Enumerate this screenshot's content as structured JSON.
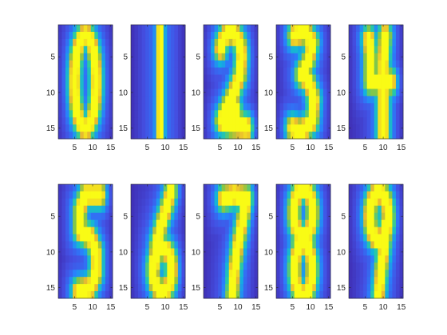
{
  "chart_data": {
    "type": "heatmap",
    "colormap": "parula",
    "layout": "2x5 grid of image subplots",
    "panels": [
      "0",
      "1",
      "2",
      "3",
      "4",
      "5",
      "6",
      "7",
      "8",
      "9"
    ],
    "image_grid": {
      "rows": 16,
      "cols": 15
    },
    "xlim": [
      0.5,
      15.5
    ],
    "ylim": [
      0.5,
      16.5
    ],
    "y_direction": "reversed",
    "xticks": [
      5,
      10,
      15
    ],
    "yticks": [
      5,
      10,
      15
    ],
    "xtick_labels": [
      "5",
      "10",
      "15"
    ],
    "ytick_labels": [
      "5",
      "10",
      "15"
    ],
    "grid": false,
    "colors": {
      "low": "#3e26a8",
      "mid": "#12beb9",
      "high": "#f9fb15",
      "axes_text": "#262626"
    }
  }
}
